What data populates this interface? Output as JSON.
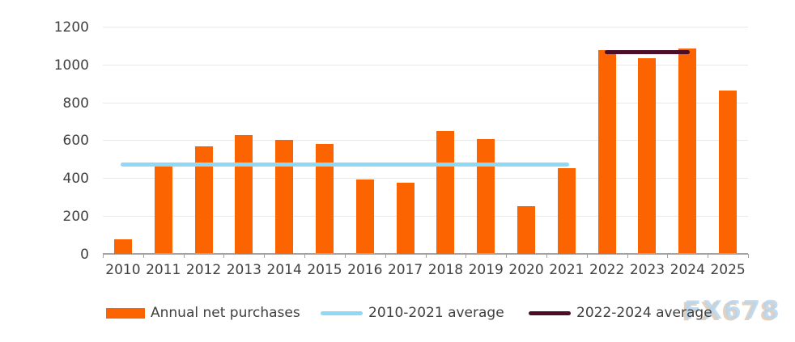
{
  "chart_data": {
    "type": "bar",
    "categories": [
      "2010",
      "2011",
      "2012",
      "2013",
      "2014",
      "2015",
      "2016",
      "2017",
      "2018",
      "2019",
      "2020",
      "2021",
      "2022",
      "2023",
      "2024",
      "2025"
    ],
    "series": [
      {
        "name": "Annual net purchases",
        "type": "bar",
        "color": "#fb6400",
        "values": [
          75,
          465,
          565,
          625,
          600,
          580,
          390,
          375,
          650,
          605,
          250,
          450,
          1075,
          1035,
          1085,
          860
        ]
      },
      {
        "name": "2010-2021 average",
        "type": "line",
        "color": "#8ed8f8",
        "value": 470,
        "span": [
          "2010",
          "2021"
        ]
      },
      {
        "name": "2022-2024 average",
        "type": "line",
        "color": "#4c0d28",
        "value": 1065,
        "span": [
          "2022",
          "2024"
        ]
      }
    ],
    "yticks": [
      0,
      200,
      400,
      600,
      800,
      1000,
      1200
    ],
    "ylim": [
      0,
      1200
    ],
    "xlabel": "",
    "ylabel": "",
    "title": "",
    "grid": "horizontal",
    "legend_position": "bottom"
  },
  "watermark": {
    "text": "FX678"
  },
  "colors": {
    "bar": "#fb6400",
    "line_2010_2021": "#8ed8f8",
    "line_2022_2024": "#4c0d28",
    "gridline": "#e9e9e9",
    "axis": "#a3a3a3",
    "text": "#404040",
    "watermark_blue": "#b9d5ec",
    "watermark_tan": "#d9c1a8"
  }
}
